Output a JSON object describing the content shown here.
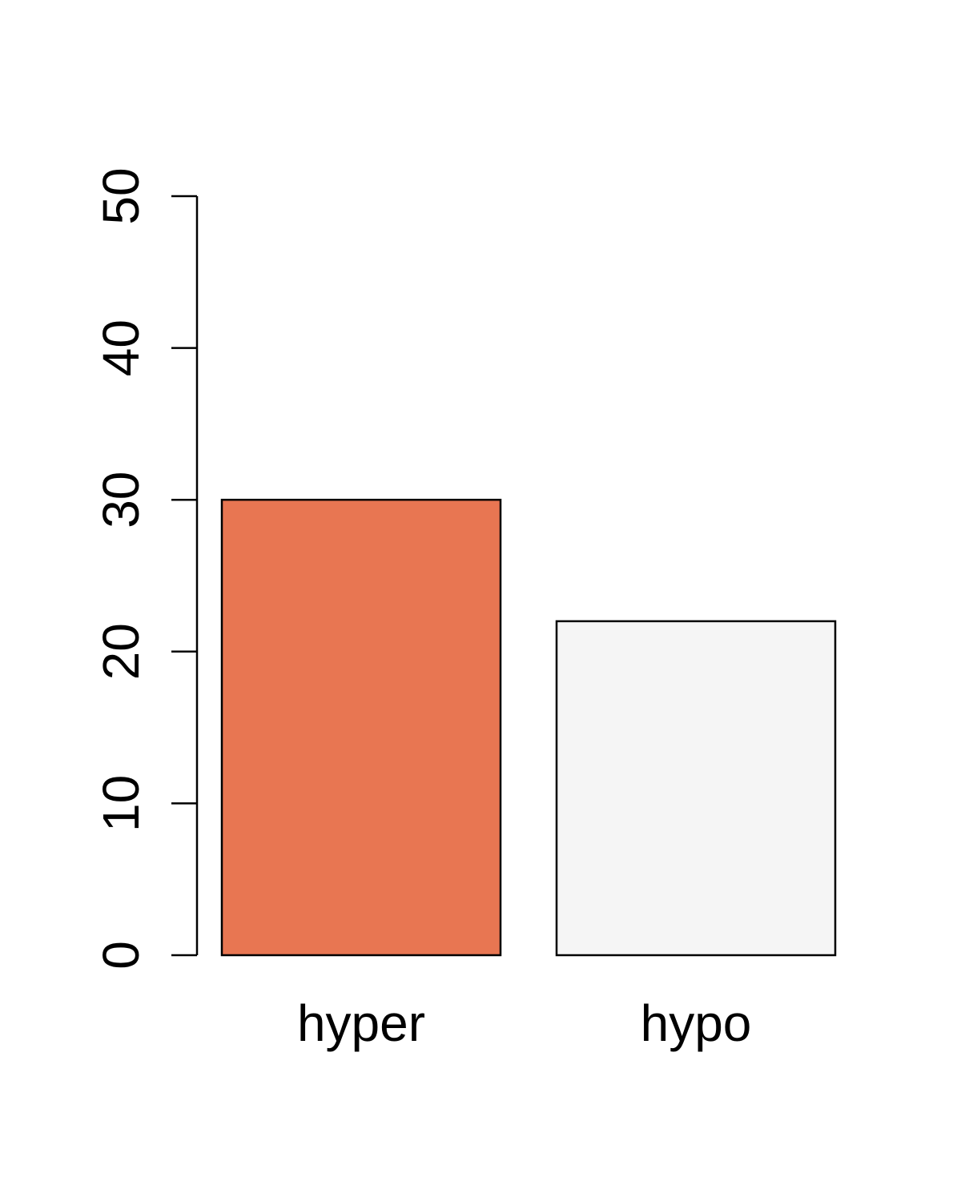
{
  "chart_data": {
    "type": "bar",
    "categories": [
      "hyper",
      "hypo"
    ],
    "values": [
      30,
      22
    ],
    "colors": [
      "#E87652",
      "#F5F5F5"
    ],
    "yticks": [
      "0",
      "10",
      "20",
      "30",
      "40",
      "50"
    ],
    "ylim": [
      0,
      50
    ],
    "grid": false,
    "title": "",
    "xlabel": "",
    "ylabel": ""
  }
}
